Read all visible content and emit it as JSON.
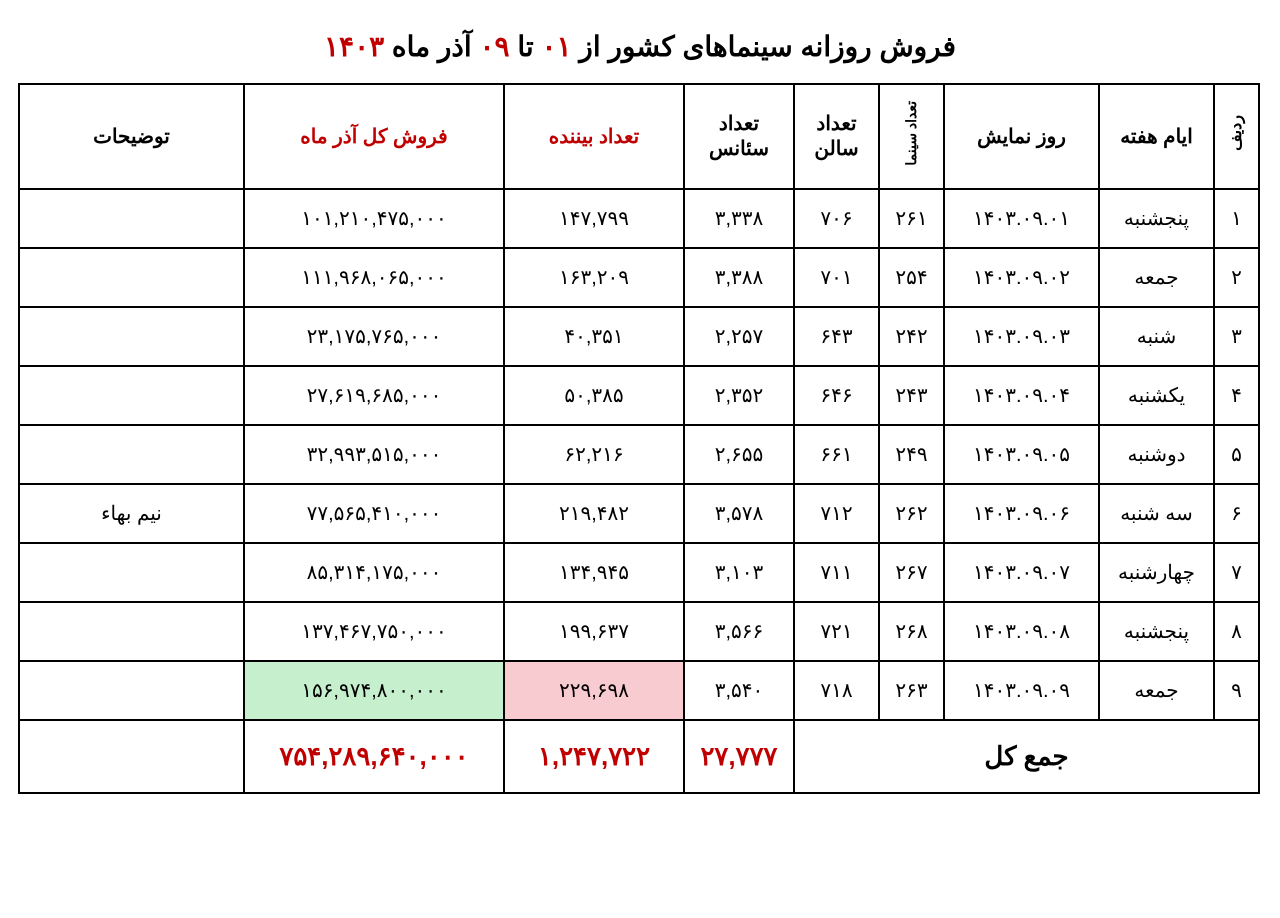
{
  "title": {
    "prefix": "فروش روزانه سینماهای کشور از ",
    "d1": "۰۱",
    "mid": " تا ",
    "d2": "۰۹",
    "suffix": " آذر ماه ",
    "year": "۱۴۰۳"
  },
  "columns": {
    "row": "ردیف",
    "weekday": "ایام هفته",
    "show_date": "روز نمایش",
    "cinema_count": "تعداد سینما",
    "salon_count": "تعداد سالن",
    "seance_count": "تعداد سئانس",
    "viewer_count": "تعداد بیننده",
    "total_sales": "فروش کل آذر ماه",
    "description": "توضیحات"
  },
  "rows": [
    {
      "n": "۱",
      "day": "پنجشنبه",
      "date": "۱۴۰۳.۰۹.۰۱",
      "cinema": "۲۶۱",
      "salon": "۷۰۶",
      "seance": "۳,۳۳۸",
      "viewer": "۱۴۷,۷۹۹",
      "sales": "۱۰۱,۲۱۰,۴۷۵,۰۰۰",
      "desc": ""
    },
    {
      "n": "۲",
      "day": "جمعه",
      "date": "۱۴۰۳.۰۹.۰۲",
      "cinema": "۲۵۴",
      "salon": "۷۰۱",
      "seance": "۳,۳۸۸",
      "viewer": "۱۶۳,۲۰۹",
      "sales": "۱۱۱,۹۶۸,۰۶۵,۰۰۰",
      "desc": ""
    },
    {
      "n": "۳",
      "day": "شنبه",
      "date": "۱۴۰۳.۰۹.۰۳",
      "cinema": "۲۴۲",
      "salon": "۶۴۳",
      "seance": "۲,۲۵۷",
      "viewer": "۴۰,۳۵۱",
      "sales": "۲۳,۱۷۵,۷۶۵,۰۰۰",
      "desc": ""
    },
    {
      "n": "۴",
      "day": "یکشنبه",
      "date": "۱۴۰۳.۰۹.۰۴",
      "cinema": "۲۴۳",
      "salon": "۶۴۶",
      "seance": "۲,۳۵۲",
      "viewer": "۵۰,۳۸۵",
      "sales": "۲۷,۶۱۹,۶۸۵,۰۰۰",
      "desc": ""
    },
    {
      "n": "۵",
      "day": "دوشنبه",
      "date": "۱۴۰۳.۰۹.۰۵",
      "cinema": "۲۴۹",
      "salon": "۶۶۱",
      "seance": "۲,۶۵۵",
      "viewer": "۶۲,۲۱۶",
      "sales": "۳۲,۹۹۳,۵۱۵,۰۰۰",
      "desc": ""
    },
    {
      "n": "۶",
      "day": "سه شنبه",
      "date": "۱۴۰۳.۰۹.۰۶",
      "cinema": "۲۶۲",
      "salon": "۷۱۲",
      "seance": "۳,۵۷۸",
      "viewer": "۲۱۹,۴۸۲",
      "sales": "۷۷,۵۶۵,۴۱۰,۰۰۰",
      "desc": "نیم بهاء"
    },
    {
      "n": "۷",
      "day": "چهارشنبه",
      "date": "۱۴۰۳.۰۹.۰۷",
      "cinema": "۲۶۷",
      "salon": "۷۱۱",
      "seance": "۳,۱۰۳",
      "viewer": "۱۳۴,۹۴۵",
      "sales": "۸۵,۳۱۴,۱۷۵,۰۰۰",
      "desc": ""
    },
    {
      "n": "۸",
      "day": "پنجشنبه",
      "date": "۱۴۰۳.۰۹.۰۸",
      "cinema": "۲۶۸",
      "salon": "۷۲۱",
      "seance": "۳,۵۶۶",
      "viewer": "۱۹۹,۶۳۷",
      "sales": "۱۳۷,۴۶۷,۷۵۰,۰۰۰",
      "desc": ""
    },
    {
      "n": "۹",
      "day": "جمعه",
      "date": "۱۴۰۳.۰۹.۰۹",
      "cinema": "۲۶۳",
      "salon": "۷۱۸",
      "seance": "۳,۵۴۰",
      "viewer": "۲۲۹,۶۹۸",
      "sales": "۱۵۶,۹۷۴,۸۰۰,۰۰۰",
      "desc": "",
      "hl_viewer": "red",
      "hl_sales": "green"
    }
  ],
  "totals": {
    "label": "جمع کل",
    "seance": "۲۷,۷۷۷",
    "viewer": "۱,۲۴۷,۷۲۲",
    "sales": "۷۵۴,۲۸۹,۶۴۰,۰۰۰"
  },
  "style": {
    "title_red": "#c00000",
    "header_red": "#c00000",
    "hl_green": "#c6efce",
    "hl_red": "#f8cbd0",
    "border": "#000000",
    "background": "#ffffff",
    "body_fontsize": 20,
    "title_fontsize": 28
  }
}
